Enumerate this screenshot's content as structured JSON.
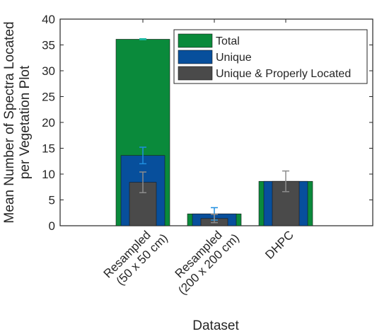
{
  "chart_data": {
    "type": "bar",
    "xlabel": "Dataset",
    "ylabel_lines": [
      "Mean Number of Spectra Located",
      "per Vegetation Plot"
    ],
    "ylim": [
      0,
      40
    ],
    "yticks": [
      0,
      5,
      10,
      15,
      20,
      25,
      30,
      35,
      40
    ],
    "categories": [
      {
        "line1": "Resampled",
        "line2": "(50 x 50 cm)"
      },
      {
        "line1": "Resampled",
        "line2": "(200 x 200 cm)"
      },
      {
        "line1": "DHPC",
        "line2": ""
      }
    ],
    "series": [
      {
        "name": "Total",
        "color": "#0a8a3b",
        "values": [
          36.1,
          2.3,
          8.6
        ],
        "err": [
          0.1,
          0,
          0
        ],
        "errColor": "#19b8a0"
      },
      {
        "name": "Unique",
        "color": "#074f9c",
        "values": [
          13.6,
          2.3,
          8.6
        ],
        "err": [
          1.6,
          1.2,
          0
        ],
        "errColor": "#1f8fe0"
      },
      {
        "name": "Unique & Properly Located",
        "color": "#4a4a4a",
        "values": [
          8.4,
          1.4,
          8.6
        ],
        "err": [
          2.0,
          0.8,
          2.0
        ],
        "errColor": "#8c8c8c"
      }
    ],
    "grid": false,
    "legend_position": "top-right"
  }
}
